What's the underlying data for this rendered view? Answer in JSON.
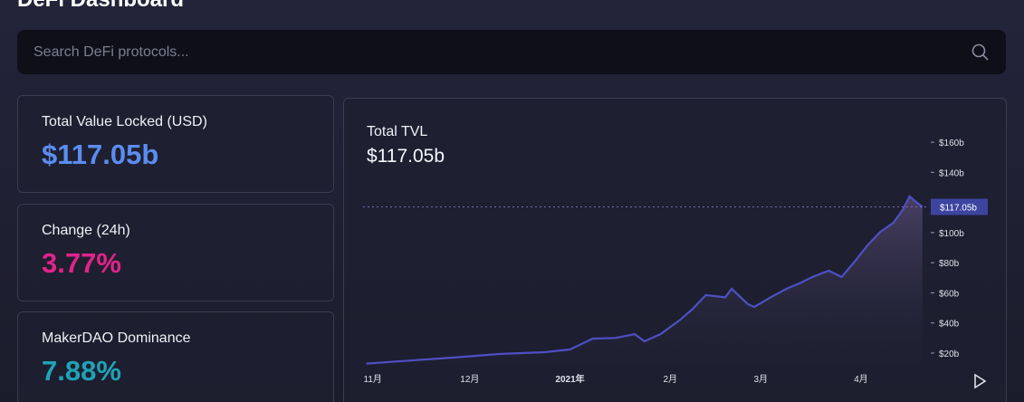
{
  "header": {
    "title": "DeFi Dashboard"
  },
  "search": {
    "placeholder": "Search DeFi protocols..."
  },
  "cards": [
    {
      "label": "Total Value Locked (USD)",
      "value": "$117.05b",
      "color": "#5b8def"
    },
    {
      "label": "Change (24h)",
      "value": "3.77%",
      "color": "#e0248a"
    },
    {
      "label": "MakerDAO Dominance",
      "value": "7.88%",
      "color": "#1fa3b5"
    }
  ],
  "chart_data": {
    "type": "area",
    "title": "Total TVL",
    "subtitle": "$117.05b",
    "x": [
      -2,
      11,
      25,
      39,
      53,
      61,
      68,
      75,
      81,
      84,
      89,
      95,
      99,
      103,
      109,
      111,
      116,
      118,
      123,
      128,
      132,
      136,
      141,
      145,
      149,
      153,
      157,
      161,
      164,
      166,
      168,
      170
    ],
    "series": [
      {
        "color": "#4f4fc4",
        "values": [
          13,
          15,
          17,
          19.4,
          20.6,
          22.4,
          29.6,
          30,
          32.6,
          27.8,
          32.6,
          42,
          49.4,
          58.5,
          57,
          62.7,
          52.5,
          50.6,
          57,
          62.7,
          66.3,
          70.5,
          74.7,
          70.5,
          80.7,
          91.5,
          100.5,
          106.5,
          115.5,
          124,
          120.4,
          117.05
        ]
      }
    ],
    "xlim": [
      -3,
      172
    ],
    "xticks": [
      {
        "value": 0,
        "label": "11月"
      },
      {
        "value": 30,
        "label": "12月"
      },
      {
        "value": 61,
        "label": "2021年"
      },
      {
        "value": 92,
        "label": "2月"
      },
      {
        "value": 120,
        "label": "3月"
      },
      {
        "value": 151,
        "label": "4月"
      }
    ],
    "ylim": [
      13,
      175
    ],
    "yticks": [
      {
        "value": 20,
        "label": "$20b"
      },
      {
        "value": 40,
        "label": "$40b"
      },
      {
        "value": 60,
        "label": "$60b"
      },
      {
        "value": 80,
        "label": "$80b"
      },
      {
        "value": 100,
        "label": "$100b"
      },
      {
        "value": 120,
        "label": "$120b"
      },
      {
        "value": 140,
        "label": "$140b"
      },
      {
        "value": 160,
        "label": "$160b"
      }
    ],
    "current_value": 117.05,
    "current_label": "$117.05b",
    "current_color": "#3d44a0"
  }
}
